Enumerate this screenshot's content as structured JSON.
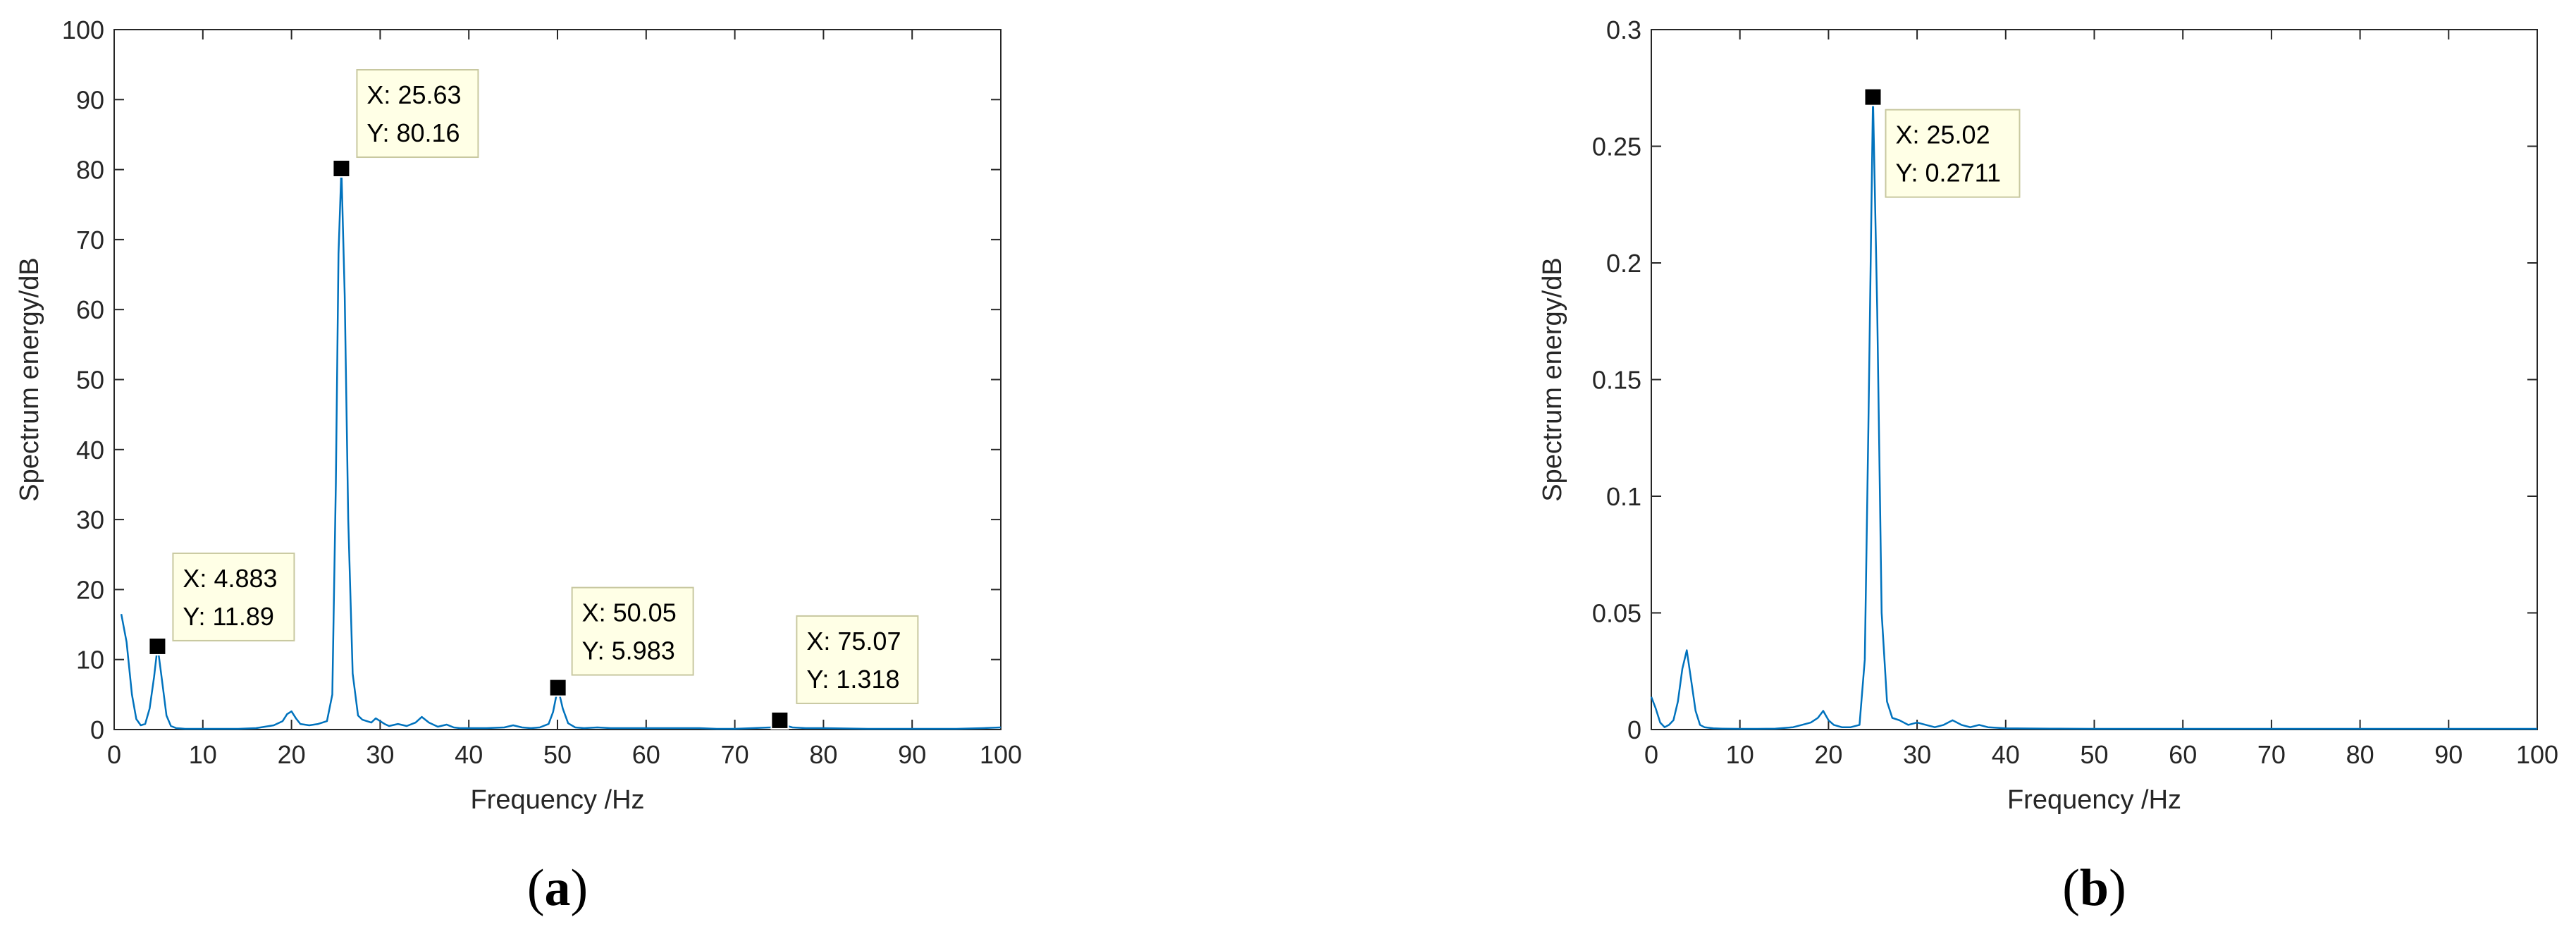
{
  "colors": {
    "line": "#0072BD",
    "axis": "#262626",
    "tip_bg": "#FFFFE6",
    "tip_border": "#C8C8A0",
    "marker": "#000000"
  },
  "chart_data": [
    {
      "type": "line",
      "caption_open": "(",
      "caption_letter": "a",
      "caption_close": ")",
      "xlabel": "Frequency /Hz",
      "ylabel": "Spectrum energy/dB",
      "xlim": [
        0,
        100
      ],
      "ylim": [
        0,
        100
      ],
      "xticks": [
        0,
        10,
        20,
        30,
        40,
        50,
        60,
        70,
        80,
        90,
        100
      ],
      "xtick_labels": [
        "0",
        "10",
        "20",
        "30",
        "40",
        "50",
        "60",
        "70",
        "80",
        "90",
        "100"
      ],
      "yticks": [
        0,
        10,
        20,
        30,
        40,
        50,
        60,
        70,
        80,
        90,
        100
      ],
      "ytick_labels": [
        "0",
        "10",
        "20",
        "30",
        "40",
        "50",
        "60",
        "70",
        "80",
        "90",
        "100"
      ],
      "grid": false,
      "series": [
        {
          "x": [
            0.8,
            1.4,
            2.0,
            2.5,
            3.0,
            3.5,
            4.0,
            4.5,
            4.9,
            5.4,
            5.9,
            6.4,
            7.0,
            8.0,
            10.0,
            12.0,
            14.0,
            16.0,
            17.0,
            18.0,
            19.0,
            19.5,
            20.0,
            20.5,
            21.0,
            22.0,
            23.0,
            24.0,
            24.6,
            25.0,
            25.3,
            25.63,
            26.0,
            26.4,
            26.9,
            27.5,
            28.0,
            29.0,
            29.5,
            30.0,
            30.5,
            31.0,
            32.0,
            33.0,
            34.0,
            34.7,
            35.5,
            36.5,
            37.5,
            38.3,
            39.0,
            40.0,
            42.0,
            44.0,
            45.0,
            46.0,
            47.0,
            48.0,
            49.0,
            49.5,
            50.05,
            50.6,
            51.2,
            52.0,
            53.0,
            54.5,
            56.0,
            58.0,
            60.0,
            62.0,
            64.0,
            66.0,
            68.0,
            70.0,
            72.0,
            74.0,
            74.6,
            75.07,
            75.6,
            76.5,
            78.0,
            80.0,
            85.0,
            90.0,
            95.0,
            98.0,
            100.0
          ],
          "y": [
            16.5,
            12.5,
            5.0,
            1.5,
            0.6,
            0.8,
            3.0,
            7.5,
            11.89,
            7.0,
            2.0,
            0.5,
            0.2,
            0.1,
            0.1,
            0.1,
            0.1,
            0.2,
            0.4,
            0.6,
            1.2,
            2.2,
            2.6,
            1.6,
            0.8,
            0.6,
            0.8,
            1.2,
            5.0,
            35.0,
            68.0,
            80.16,
            62.0,
            30.0,
            8.0,
            2.0,
            1.4,
            1.0,
            1.6,
            1.2,
            0.8,
            0.5,
            0.8,
            0.5,
            1.0,
            1.8,
            1.0,
            0.4,
            0.7,
            0.3,
            0.2,
            0.2,
            0.2,
            0.3,
            0.6,
            0.3,
            0.2,
            0.3,
            0.8,
            2.5,
            5.983,
            3.0,
            0.9,
            0.3,
            0.2,
            0.3,
            0.2,
            0.2,
            0.2,
            0.2,
            0.2,
            0.2,
            0.1,
            0.1,
            0.2,
            0.3,
            0.5,
            1.318,
            0.6,
            0.3,
            0.2,
            0.2,
            0.1,
            0.1,
            0.1,
            0.2,
            0.3
          ]
        }
      ],
      "datatips": [
        {
          "x": 4.883,
          "y": 11.89,
          "line1": "X: 4.883",
          "line2": "Y: 11.89"
        },
        {
          "x": 25.63,
          "y": 80.16,
          "line1": "X: 25.63",
          "line2": "Y: 80.16"
        },
        {
          "x": 50.05,
          "y": 5.983,
          "line1": "X: 50.05",
          "line2": "Y: 5.983"
        },
        {
          "x": 75.07,
          "y": 1.318,
          "line1": "X: 75.07",
          "line2": "Y: 1.318"
        }
      ]
    },
    {
      "type": "line",
      "caption_open": "(",
      "caption_letter": "b",
      "caption_close": ")",
      "xlabel": "Frequency /Hz",
      "ylabel": "Spectrum energy/dB",
      "xlim": [
        0,
        100
      ],
      "ylim": [
        0,
        0.3
      ],
      "xticks": [
        0,
        10,
        20,
        30,
        40,
        50,
        60,
        70,
        80,
        90,
        100
      ],
      "xtick_labels": [
        "0",
        "10",
        "20",
        "30",
        "40",
        "50",
        "60",
        "70",
        "80",
        "90",
        "100"
      ],
      "yticks": [
        0,
        0.05,
        0.1,
        0.15,
        0.2,
        0.25,
        0.3
      ],
      "ytick_labels": [
        "0",
        "0.05",
        "0.1",
        "0.15",
        "0.2",
        "0.25",
        "0.3"
      ],
      "grid": false,
      "series": [
        {
          "x": [
            0.0,
            0.5,
            1.0,
            1.5,
            2.0,
            2.5,
            3.0,
            3.5,
            4.0,
            4.5,
            5.0,
            5.5,
            6.0,
            7.0,
            8.0,
            10.0,
            12.0,
            14.0,
            16.0,
            17.0,
            18.0,
            18.8,
            19.4,
            20.0,
            20.6,
            21.5,
            22.5,
            23.5,
            24.1,
            24.5,
            25.02,
            25.5,
            26.0,
            26.6,
            27.2,
            28.0,
            29.0,
            30.0,
            31.0,
            32.0,
            33.0,
            34.0,
            35.0,
            36.0,
            37.0,
            38.0,
            40.0,
            45.0,
            50.0,
            60.0,
            70.0,
            80.0,
            90.0,
            100.0
          ],
          "y": [
            0.014,
            0.009,
            0.003,
            0.001,
            0.002,
            0.004,
            0.012,
            0.026,
            0.034,
            0.021,
            0.008,
            0.002,
            0.001,
            0.0005,
            0.0004,
            0.0003,
            0.0003,
            0.0004,
            0.001,
            0.002,
            0.003,
            0.005,
            0.008,
            0.004,
            0.002,
            0.001,
            0.001,
            0.002,
            0.03,
            0.13,
            0.2711,
            0.18,
            0.05,
            0.012,
            0.005,
            0.004,
            0.002,
            0.003,
            0.002,
            0.001,
            0.002,
            0.004,
            0.002,
            0.001,
            0.002,
            0.001,
            0.0005,
            0.0004,
            0.0003,
            0.0003,
            0.0003,
            0.0003,
            0.0003,
            0.0003
          ]
        }
      ],
      "datatips": [
        {
          "x": 25.02,
          "y": 0.2711,
          "line1": "X: 25.02",
          "line2": "Y: 0.2711"
        }
      ]
    }
  ]
}
